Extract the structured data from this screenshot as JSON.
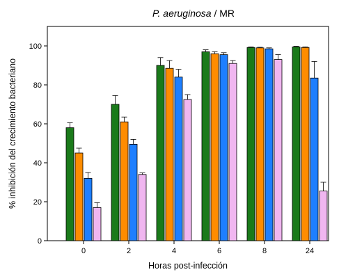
{
  "chart_data": {
    "type": "bar",
    "title_italic": "P. aeruginosa",
    "title_rest": " / MR",
    "xlabel": "Horas post-infección",
    "ylabel": "% inhibición del crecimiento bacteriano",
    "categories": [
      "0",
      "2",
      "4",
      "6",
      "8",
      "24"
    ],
    "ylim": [
      0,
      110
    ],
    "yticks": [
      0,
      20,
      40,
      60,
      80,
      100
    ],
    "grid": false,
    "legend": "none",
    "series": [
      {
        "color": "#1a7a1a",
        "values": [
          58,
          70,
          90,
          97,
          99.2,
          99.5
        ],
        "errors": [
          2.5,
          4.5,
          4,
          1,
          0.3,
          0.3
        ]
      },
      {
        "color": "#ff8c00",
        "values": [
          45,
          61,
          88.5,
          96,
          99,
          99.2
        ],
        "errors": [
          2.5,
          2.5,
          4,
          1,
          0.3,
          0.3
        ]
      },
      {
        "color": "#1e7fff",
        "values": [
          32,
          49.5,
          84,
          95.5,
          98.5,
          83.5
        ],
        "errors": [
          3,
          2.5,
          4,
          1,
          0.5,
          8.5
        ]
      },
      {
        "color": "#f0b6f0",
        "values": [
          17,
          34,
          72.5,
          91,
          93,
          25.5
        ],
        "errors": [
          2.5,
          0.8,
          2.5,
          1.5,
          2.5,
          4.5
        ]
      }
    ]
  }
}
